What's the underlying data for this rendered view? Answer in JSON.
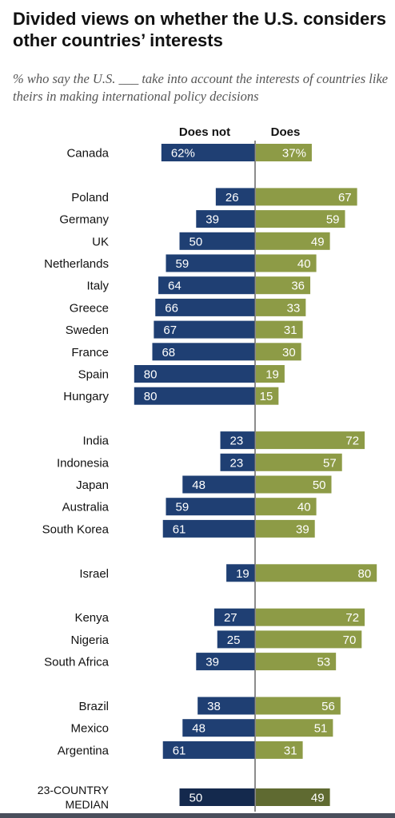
{
  "chart_data": {
    "type": "bar",
    "title": "Divided views on whether the U.S. considers other countries’ interests",
    "subtitle": "% who say the U.S. ___ take into account the interests of countries like theirs in making international policy decisions",
    "series": [
      {
        "name": "Does not",
        "color": "#1f3f73"
      },
      {
        "name": "Does",
        "color": "#8d9b46"
      }
    ],
    "median_colors": {
      "Does not": "#14294d",
      "Does": "#5f6a31"
    },
    "groups": [
      [
        {
          "country": "Canada",
          "does_not": 62,
          "does": 37,
          "does_not_label": "62%",
          "does_label": "37%"
        }
      ],
      [
        {
          "country": "Poland",
          "does_not": 26,
          "does": 67,
          "does_not_label": "26",
          "does_label": "67"
        },
        {
          "country": "Germany",
          "does_not": 39,
          "does": 59,
          "does_not_label": "39",
          "does_label": "59"
        },
        {
          "country": "UK",
          "does_not": 50,
          "does": 49,
          "does_not_label": "50",
          "does_label": "49"
        },
        {
          "country": "Netherlands",
          "does_not": 59,
          "does": 40,
          "does_not_label": "59",
          "does_label": "40"
        },
        {
          "country": "Italy",
          "does_not": 64,
          "does": 36,
          "does_not_label": "64",
          "does_label": "36"
        },
        {
          "country": "Greece",
          "does_not": 66,
          "does": 33,
          "does_not_label": "66",
          "does_label": "33"
        },
        {
          "country": "Sweden",
          "does_not": 67,
          "does": 31,
          "does_not_label": "67",
          "does_label": "31"
        },
        {
          "country": "France",
          "does_not": 68,
          "does": 30,
          "does_not_label": "68",
          "does_label": "30"
        },
        {
          "country": "Spain",
          "does_not": 80,
          "does": 19,
          "does_not_label": "80",
          "does_label": "19"
        },
        {
          "country": "Hungary",
          "does_not": 80,
          "does": 15,
          "does_not_label": "80",
          "does_label": "15"
        }
      ],
      [
        {
          "country": "India",
          "does_not": 23,
          "does": 72,
          "does_not_label": "23",
          "does_label": "72"
        },
        {
          "country": "Indonesia",
          "does_not": 23,
          "does": 57,
          "does_not_label": "23",
          "does_label": "57"
        },
        {
          "country": "Japan",
          "does_not": 48,
          "does": 50,
          "does_not_label": "48",
          "does_label": "50"
        },
        {
          "country": "Australia",
          "does_not": 59,
          "does": 40,
          "does_not_label": "59",
          "does_label": "40"
        },
        {
          "country": "South Korea",
          "does_not": 61,
          "does": 39,
          "does_not_label": "61",
          "does_label": "39"
        }
      ],
      [
        {
          "country": "Israel",
          "does_not": 19,
          "does": 80,
          "does_not_label": "19",
          "does_label": "80"
        }
      ],
      [
        {
          "country": "Kenya",
          "does_not": 27,
          "does": 72,
          "does_not_label": "27",
          "does_label": "72"
        },
        {
          "country": "Nigeria",
          "does_not": 25,
          "does": 70,
          "does_not_label": "25",
          "does_label": "70"
        },
        {
          "country": "South Africa",
          "does_not": 39,
          "does": 53,
          "does_not_label": "39",
          "does_label": "53"
        }
      ],
      [
        {
          "country": "Brazil",
          "does_not": 38,
          "does": 56,
          "does_not_label": "38",
          "does_label": "56"
        },
        {
          "country": "Mexico",
          "does_not": 48,
          "does": 51,
          "does_not_label": "48",
          "does_label": "51"
        },
        {
          "country": "Argentina",
          "does_not": 61,
          "does": 31,
          "does_not_label": "61",
          "does_label": "31"
        }
      ]
    ],
    "median": {
      "label": "23-COUNTRY MEDIAN",
      "label_lines": [
        "23-COUNTRY",
        "MEDIAN"
      ],
      "does_not": 50,
      "does": 49,
      "does_not_label": "50",
      "does_label": "49"
    }
  }
}
